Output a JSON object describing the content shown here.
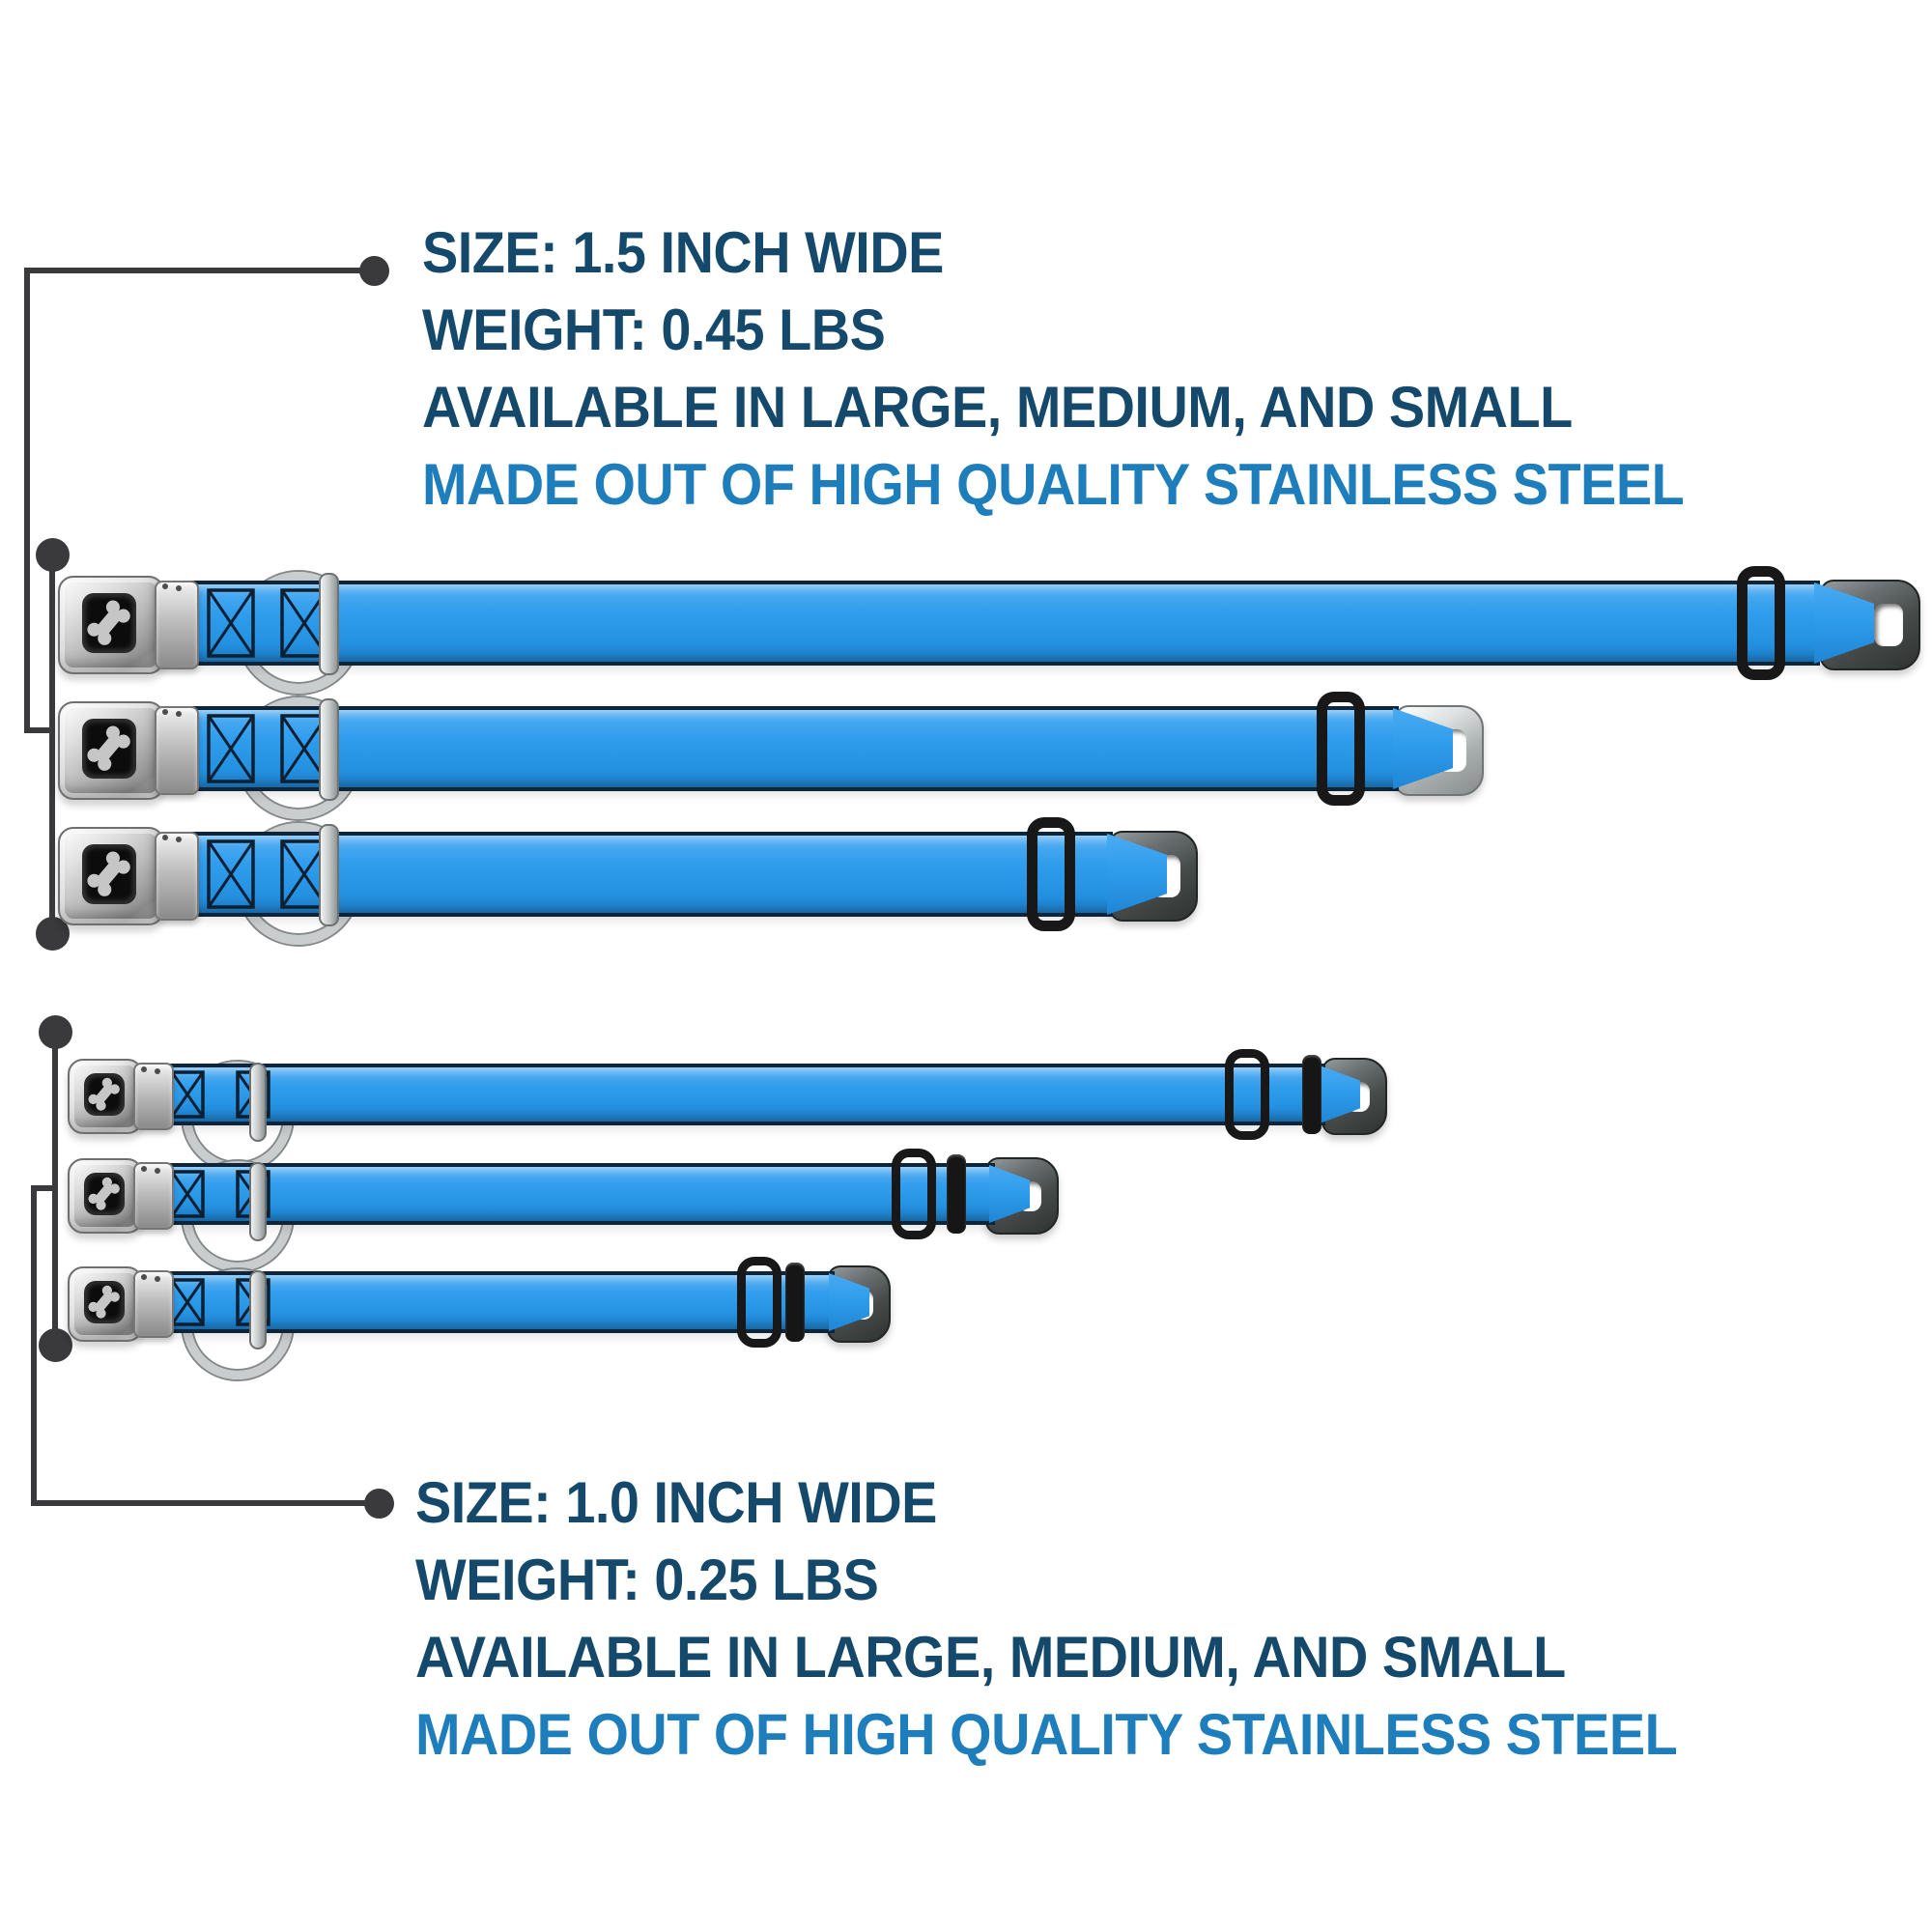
{
  "title": "Seatbelt buckle dog collar size infographic",
  "colors": {
    "background": "#ffffff",
    "heading_navy": "#15496B",
    "highlight_blue": "#1E7DBB",
    "callout_gray": "#3A3A3C",
    "strap_blue": "#2F9CEC"
  },
  "icons": {
    "buckle_logo": "dog-bone-icon",
    "callout_marker": "dot-marker"
  },
  "spec_blocks": {
    "top": {
      "lines": [
        "SIZE: 1.5 INCH WIDE",
        "WEIGHT: 0.45 LBS",
        "AVAILABLE IN LARGE, MEDIUM, AND SMALL",
        "MADE OUT OF HIGH QUALITY STAINLESS STEEL"
      ]
    },
    "bottom": {
      "lines": [
        "SIZE: 1.0 INCH WIDE",
        "WEIGHT: 0.25 LBS",
        "AVAILABLE IN LARGE, MEDIUM, AND SMALL",
        "MADE OUT OF HIGH QUALITY STAINLESS STEEL"
      ]
    }
  },
  "collar_groups": [
    {
      "width_label": "1.5-inch",
      "sizes": [
        "large",
        "medium",
        "small"
      ]
    },
    {
      "width_label": "1.0-inch",
      "sizes": [
        "large",
        "medium",
        "small"
      ]
    }
  ]
}
